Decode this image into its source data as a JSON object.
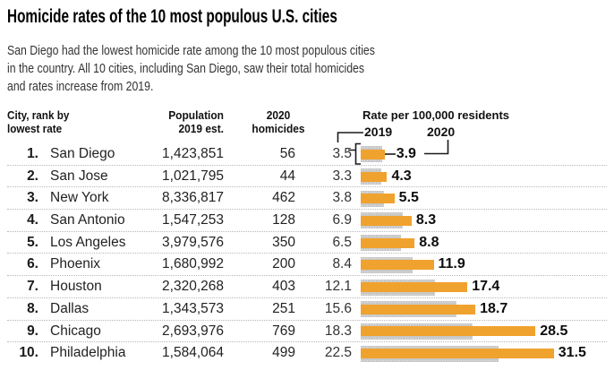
{
  "title": "Homicide rates of the 10 most populous U.S. cities",
  "subtitle_lines": [
    "San Diego had the lowest homicide rate among the 10 most populous cities",
    "in the country. All 10 cities, including San Diego, saw their total homicides",
    "and rates increase from 2019."
  ],
  "headers": {
    "city_line1": "City, rank by",
    "city_line2": "lowest rate",
    "population_line1": "Population",
    "population_line2": "2019 est.",
    "homicides_line1": "2020",
    "homicides_line2": "homicides",
    "rate": "Rate per 100,000 residents",
    "year_2019": "2019",
    "year_2020": "2020"
  },
  "rows": [
    {
      "rank": "1.",
      "city": "San Diego",
      "population": "1,423,851",
      "homicides": "56",
      "rate_2019": "3.5",
      "rate_2020": "3.9"
    },
    {
      "rank": "2.",
      "city": "San Jose",
      "population": "1,021,795",
      "homicides": "44",
      "rate_2019": "3.3",
      "rate_2020": "4.3"
    },
    {
      "rank": "3.",
      "city": "New York",
      "population": "8,336,817",
      "homicides": "462",
      "rate_2019": "3.8",
      "rate_2020": "5.5"
    },
    {
      "rank": "4.",
      "city": "San Antonio",
      "population": "1,547,253",
      "homicides": "128",
      "rate_2019": "6.9",
      "rate_2020": "8.3"
    },
    {
      "rank": "5.",
      "city": "Los Angeles",
      "population": "3,979,576",
      "homicides": "350",
      "rate_2019": "6.5",
      "rate_2020": "8.8"
    },
    {
      "rank": "6.",
      "city": "Phoenix",
      "population": "1,680,992",
      "homicides": "200",
      "rate_2019": "8.4",
      "rate_2020": "11.9"
    },
    {
      "rank": "7.",
      "city": "Houston",
      "population": "2,320,268",
      "homicides": "403",
      "rate_2019": "12.1",
      "rate_2020": "17.4"
    },
    {
      "rank": "8.",
      "city": "Dallas",
      "population": "1,343,573",
      "homicides": "251",
      "rate_2019": "15.6",
      "rate_2020": "18.7"
    },
    {
      "rank": "9.",
      "city": "Chicago",
      "population": "2,693,976",
      "homicides": "769",
      "rate_2019": "18.3",
      "rate_2020": "28.5"
    },
    {
      "rank": "10.",
      "city": "Philadelphia",
      "population": "1,584,064",
      "homicides": "499",
      "rate_2019": "22.5",
      "rate_2020": "31.5"
    }
  ],
  "chart_data": {
    "type": "bar",
    "title": "Homicide rates of the 10 most populous U.S. cities",
    "categories": [
      "San Diego",
      "San Jose",
      "New York",
      "San Antonio",
      "Los Angeles",
      "Phoenix",
      "Houston",
      "Dallas",
      "Chicago",
      "Philadelphia"
    ],
    "series": [
      {
        "name": "2019",
        "values": [
          3.5,
          3.3,
          3.8,
          6.9,
          6.5,
          8.4,
          12.1,
          15.6,
          18.3,
          22.5
        ]
      },
      {
        "name": "2020",
        "values": [
          3.9,
          4.3,
          5.5,
          8.3,
          8.8,
          11.9,
          17.4,
          18.7,
          28.5,
          31.5
        ]
      }
    ],
    "xlabel": "Rate per 100,000 residents",
    "ylabel": "",
    "xlim": [
      0,
      33
    ],
    "grid": false,
    "legend_position": "above-first-bar",
    "colors": {
      "series_2019": "#c8c8c8",
      "series_2020": "#f0a22e"
    },
    "population_2019_est": [
      1423851,
      1021795,
      8336817,
      1547253,
      3979576,
      1680992,
      2320268,
      1343573,
      2693976,
      1584064
    ],
    "homicides_2020": [
      56,
      44,
      462,
      128,
      350,
      200,
      403,
      251,
      769,
      499
    ]
  },
  "annotation": {
    "leader_color": "#1a1a1a"
  }
}
